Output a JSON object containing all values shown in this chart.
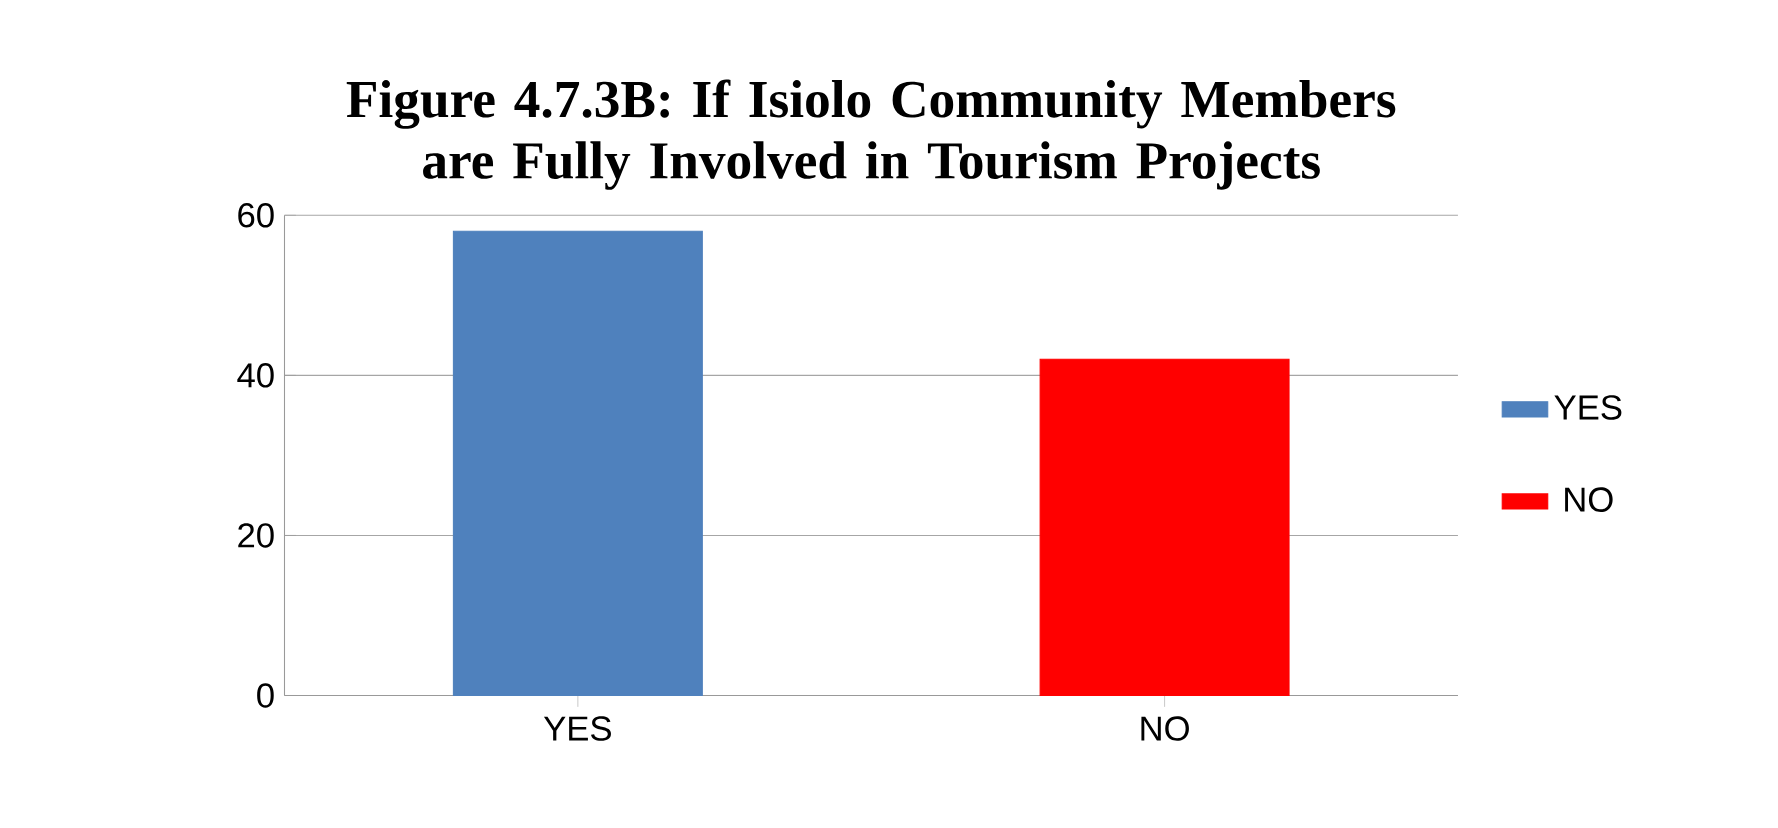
{
  "chart_data": {
    "type": "bar",
    "title": "Figure 4.7.3B: If Isiolo Community Members are Fully Involved in Tourism Projects",
    "categories": [
      "YES",
      "NO"
    ],
    "series": [
      {
        "name": "YES",
        "color": "#4f81bd",
        "values": [
          58,
          null
        ]
      },
      {
        "name": "NO",
        "color": "#ff0000",
        "values": [
          null,
          42
        ]
      }
    ],
    "ylim": [
      0,
      60
    ],
    "yticks": [
      0,
      20,
      40,
      60
    ],
    "grid": "y",
    "legend": "right"
  }
}
